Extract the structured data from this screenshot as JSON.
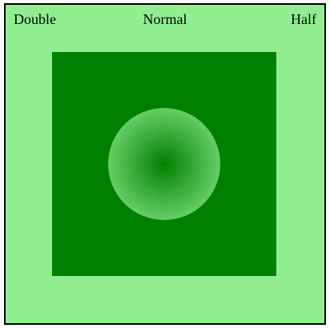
{
  "labels": {
    "left": "Double",
    "center": "Normal",
    "right": "Half"
  },
  "colors": {
    "background": "#90ee90",
    "square": "#008000",
    "circle_center": "#008000",
    "circle_edge": "#90ee90",
    "border": "#000000"
  }
}
